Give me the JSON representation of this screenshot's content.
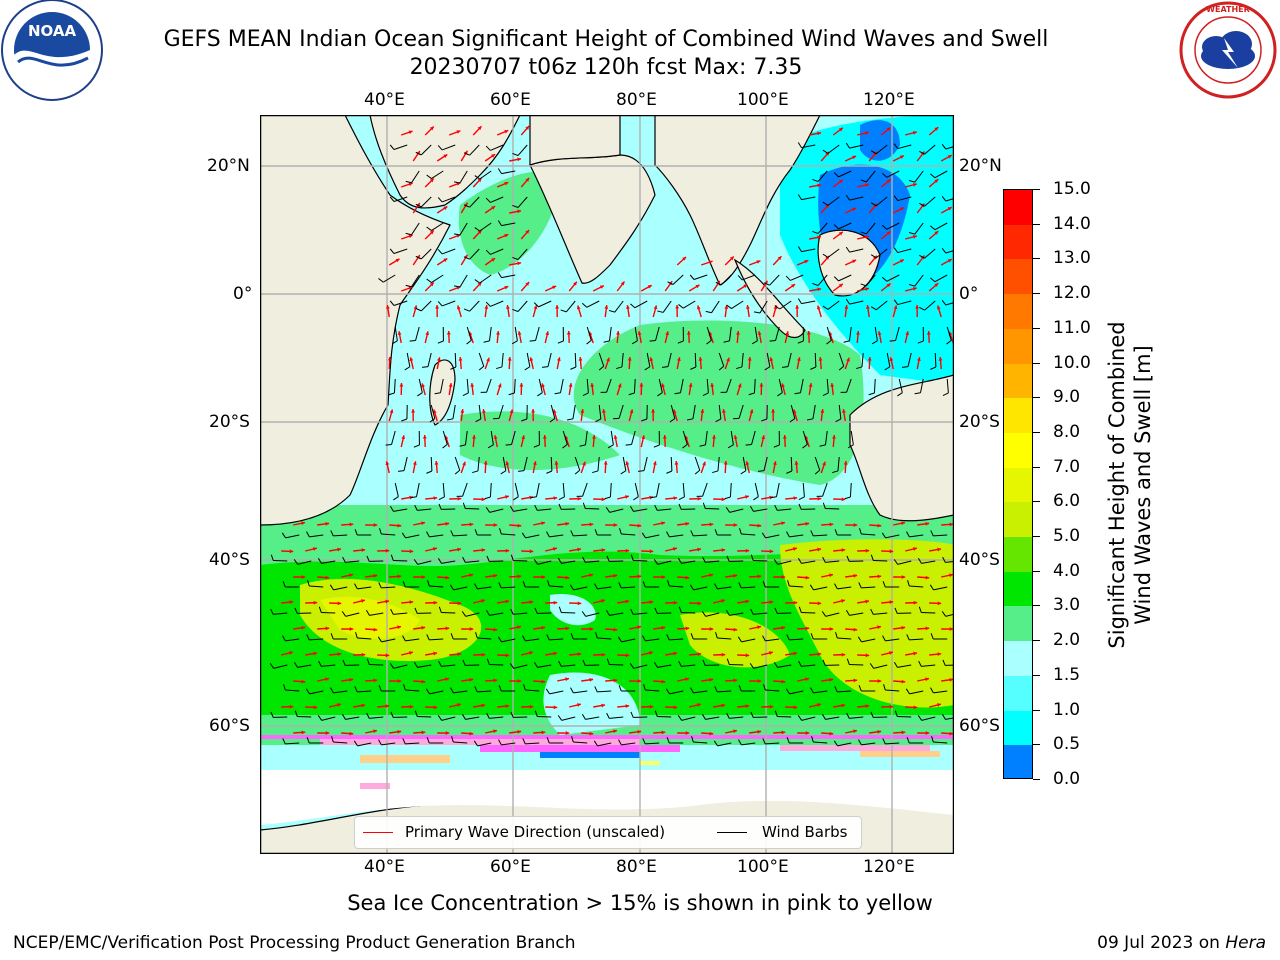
{
  "header": {
    "title_line1": "GEFS MEAN Indian Ocean Significant Height of Combined Wind Waves and Swell",
    "title_line2": "20230707 t06z 120h fcst   Max: 7.35"
  },
  "logos": {
    "left": "noaa-logo",
    "left_text": "NOAA",
    "left_ring_text": "NATIONAL OCEANIC AND ATMOSPHERIC ADMINISTRATION · U.S. DEPARTMENT OF COMMERCE",
    "right": "nws-logo",
    "right_ring_text": "NATIONAL WEATHER SERVICE"
  },
  "map": {
    "lon_labels": [
      "40°E",
      "60°E",
      "80°E",
      "100°E",
      "120°E"
    ],
    "lat_labels": [
      "20°N",
      "0°",
      "20°S",
      "40°S",
      "60°S"
    ],
    "extent": {
      "lon": [
        20,
        130
      ],
      "lat": [
        -80,
        28
      ]
    },
    "legend": {
      "wave_direction": "Primary Wave Direction (unscaled)",
      "wind_barbs": "Wind Barbs",
      "wave_color": "#ff0000",
      "barb_color": "#000000"
    },
    "land_color": "#efeedf",
    "ice_colors": [
      "#ff66ff",
      "#ffaadd",
      "#ffd08a",
      "#ffff66"
    ]
  },
  "colorbar": {
    "label_line1": "Significant Height of Combined",
    "label_line2": "Wind Waves and Swell [m]",
    "ticks": [
      "15.0",
      "14.0",
      "13.0",
      "12.0",
      "11.0",
      "10.0",
      "9.0",
      "8.0",
      "7.0",
      "6.0",
      "5.0",
      "4.0",
      "3.0",
      "2.0",
      "1.5",
      "1.0",
      "0.5",
      "0.0"
    ],
    "colors": [
      "#ff0000",
      "#ff2800",
      "#ff5000",
      "#ff7800",
      "#ff9600",
      "#ffb400",
      "#ffe600",
      "#ffff00",
      "#e6f500",
      "#c8f000",
      "#64e600",
      "#00e600",
      "#55ee88",
      "#aaffff",
      "#55ffff",
      "#00ffff",
      "#0080ff",
      "#0000ff"
    ]
  },
  "footer": {
    "ice_note": "Sea Ice Concentration > 15% is shown in pink to yellow",
    "left": "NCEP/EMC/Verification Post Processing Product Generation Branch",
    "right_date": "09 Jul 2023 on",
    "right_host": "Hera"
  }
}
